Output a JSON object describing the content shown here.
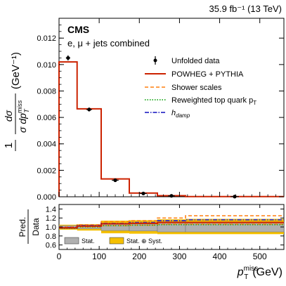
{
  "header": {
    "lumi": "35.9 fb⁻¹ (13 TeV)"
  },
  "chart_data": {
    "type": "line",
    "experiment": "CMS",
    "channel": "e, μ + jets combined",
    "y_label_top_num": "1",
    "y_label_frac": "dσ",
    "y_label_prefix": "σ",
    "y_label_unit": "(GeV⁻¹)",
    "x_label": "p",
    "x_label_sup": "miss",
    "x_label_sub": "T",
    "x_unit": "(GeV)",
    "ratio_label_top": "Pred.",
    "ratio_label_bottom": "Data",
    "xlim": [
      0,
      560
    ],
    "ylim": [
      0,
      0.0135
    ],
    "ratio_ylim": [
      0.5,
      1.5
    ],
    "x_ticks": [
      0,
      100,
      200,
      300,
      400,
      500
    ],
    "x_tick_labels": [
      "0",
      "100",
      "200",
      "300",
      "400",
      "500"
    ],
    "y_ticks": [
      0,
      0.002,
      0.004,
      0.006,
      0.008,
      0.01,
      0.012
    ],
    "y_tick_labels": [
      "0.000",
      "0.002",
      "0.004",
      "0.006",
      "0.008",
      "0.010",
      "0.012"
    ],
    "ratio_ticks": [
      0.6,
      0.8,
      1.0,
      1.2,
      1.4
    ],
    "ratio_tick_labels": [
      "0.6",
      "0.8",
      "1.0",
      "1.2",
      "1.4"
    ],
    "bin_edges": [
      0,
      45,
      105,
      175,
      245,
      315,
      560
    ],
    "data": {
      "name": "Unfolded data",
      "x": [
        22.5,
        75,
        140,
        210,
        280,
        437.5
      ],
      "y": [
        0.0105,
        0.0066,
        0.00125,
        0.00025,
        7e-05,
        1.2e-05
      ],
      "yerr": [
        0.0002,
        0.00015,
        6e-05,
        3e-05,
        1e-05,
        3e-06
      ]
    },
    "prediction": {
      "name": "POWHEG + PYTHIA",
      "values": [
        0.0102,
        0.00665,
        0.00135,
        0.00028,
        8e-05,
        1.4e-05
      ]
    },
    "legend": [
      {
        "label": "Unfolded data",
        "style": "marker",
        "color": "#000000"
      },
      {
        "label": "POWHEG + PYTHIA",
        "style": "solid",
        "color": "#cc2200"
      },
      {
        "label": "Shower scales",
        "style": "dashed",
        "color": "#ff7f0e"
      },
      {
        "label": "Reweighted top quark p",
        "sub": "T",
        "style": "dotted",
        "color": "#22aa22"
      },
      {
        "label": "h",
        "sub": "damp",
        "style": "dashdot",
        "color": "#3030c8"
      }
    ],
    "ratio": {
      "stat_band": [
        [
          0.96,
          1.03
        ],
        [
          0.96,
          1.04
        ],
        [
          0.92,
          1.08
        ],
        [
          0.91,
          1.09
        ],
        [
          0.89,
          1.11
        ],
        [
          0.89,
          1.11
        ]
      ],
      "syst_band": [
        [
          0.94,
          1.05
        ],
        [
          0.92,
          1.06
        ],
        [
          0.86,
          1.14
        ],
        [
          0.85,
          1.15
        ],
        [
          0.84,
          1.17
        ],
        [
          0.84,
          1.18
        ]
      ],
      "central": [
        0.98,
        1.02,
        1.07,
        1.08,
        1.1,
        1.1
      ],
      "shower_up": [
        1.0,
        1.05,
        1.12,
        1.14,
        1.2,
        1.25
      ],
      "shower_down": [
        0.97,
        1.0,
        1.03,
        1.04,
        1.06,
        1.06
      ],
      "reweighted": [
        0.97,
        1.0,
        1.03,
        1.04,
        1.05,
        1.05
      ],
      "hdamp": [
        0.99,
        1.03,
        1.08,
        1.1,
        1.14,
        1.16
      ]
    },
    "ratio_legend": [
      {
        "label": "Stat.",
        "color": "#b0b0b0"
      },
      {
        "label": "Stat. ⊕ Syst.",
        "color": "#f5c000"
      }
    ],
    "colors": {
      "prediction": "#cc2200",
      "shower": "#ff7f0e",
      "reweighted": "#22aa22",
      "hdamp": "#3030c8",
      "stat": "#b0b0b0",
      "syst": "#f5c000"
    }
  }
}
